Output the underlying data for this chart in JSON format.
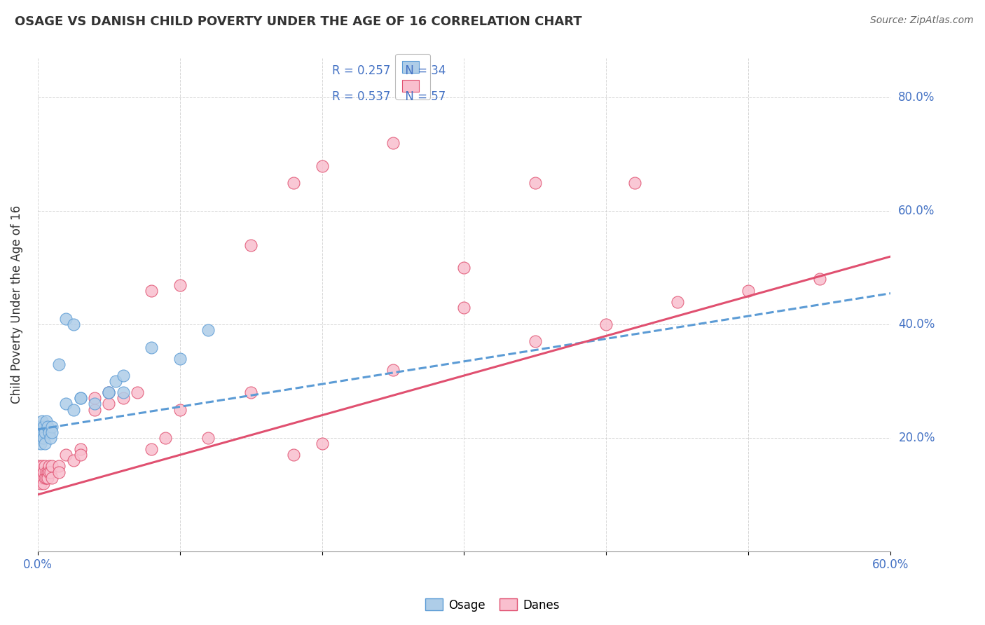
{
  "title": "OSAGE VS DANISH CHILD POVERTY UNDER THE AGE OF 16 CORRELATION CHART",
  "source": "Source: ZipAtlas.com",
  "ylabel": "Child Poverty Under the Age of 16",
  "legend_label1": "Osage",
  "legend_label2": "Danes",
  "legend_r1": "R = 0.257",
  "legend_n1": "N = 34",
  "legend_r2": "R = 0.537",
  "legend_n2": "N = 57",
  "color_osage_fill": "#aecde8",
  "color_osage_edge": "#5b9bd5",
  "color_danes_fill": "#f9bfce",
  "color_danes_edge": "#e05070",
  "color_line_osage": "#5b9bd5",
  "color_line_danes": "#e05070",
  "color_axis_text": "#4472c4",
  "background_color": "#ffffff",
  "xlim": [
    0.0,
    0.6
  ],
  "ylim": [
    0.0,
    0.87
  ],
  "osage_x": [
    0.001,
    0.001,
    0.001,
    0.002,
    0.002,
    0.002,
    0.003,
    0.003,
    0.004,
    0.004,
    0.005,
    0.005,
    0.006,
    0.007,
    0.008,
    0.009,
    0.01,
    0.01,
    0.015,
    0.02,
    0.025,
    0.03,
    0.04,
    0.05,
    0.055,
    0.06,
    0.02,
    0.025,
    0.03,
    0.05,
    0.06,
    0.08,
    0.1,
    0.12
  ],
  "osage_y": [
    0.21,
    0.22,
    0.2,
    0.22,
    0.2,
    0.19,
    0.23,
    0.21,
    0.22,
    0.2,
    0.21,
    0.19,
    0.23,
    0.22,
    0.21,
    0.2,
    0.22,
    0.21,
    0.33,
    0.26,
    0.25,
    0.27,
    0.26,
    0.28,
    0.3,
    0.28,
    0.41,
    0.4,
    0.27,
    0.28,
    0.31,
    0.36,
    0.34,
    0.39
  ],
  "danes_x": [
    0.001,
    0.001,
    0.001,
    0.002,
    0.002,
    0.002,
    0.003,
    0.003,
    0.003,
    0.004,
    0.004,
    0.005,
    0.005,
    0.006,
    0.006,
    0.007,
    0.007,
    0.008,
    0.008,
    0.009,
    0.01,
    0.01,
    0.015,
    0.015,
    0.02,
    0.025,
    0.03,
    0.03,
    0.04,
    0.04,
    0.05,
    0.05,
    0.06,
    0.07,
    0.08,
    0.09,
    0.1,
    0.12,
    0.15,
    0.18,
    0.2,
    0.25,
    0.3,
    0.35,
    0.4,
    0.45,
    0.5,
    0.55,
    0.3,
    0.18,
    0.08,
    0.1,
    0.15,
    0.2,
    0.25,
    0.35,
    0.42
  ],
  "danes_y": [
    0.14,
    0.13,
    0.15,
    0.13,
    0.12,
    0.14,
    0.14,
    0.13,
    0.15,
    0.14,
    0.12,
    0.15,
    0.13,
    0.14,
    0.13,
    0.14,
    0.13,
    0.15,
    0.14,
    0.14,
    0.15,
    0.13,
    0.15,
    0.14,
    0.17,
    0.16,
    0.18,
    0.17,
    0.25,
    0.27,
    0.26,
    0.28,
    0.27,
    0.28,
    0.18,
    0.2,
    0.25,
    0.2,
    0.28,
    0.17,
    0.19,
    0.32,
    0.43,
    0.37,
    0.4,
    0.44,
    0.46,
    0.48,
    0.5,
    0.65,
    0.46,
    0.47,
    0.54,
    0.68,
    0.72,
    0.65,
    0.65
  ],
  "trend_osage_x0": 0.0,
  "trend_osage_y0": 0.215,
  "trend_osage_x1": 0.6,
  "trend_osage_y1": 0.455,
  "trend_danes_x0": 0.0,
  "trend_danes_y0": 0.1,
  "trend_danes_x1": 0.6,
  "trend_danes_y1": 0.52
}
